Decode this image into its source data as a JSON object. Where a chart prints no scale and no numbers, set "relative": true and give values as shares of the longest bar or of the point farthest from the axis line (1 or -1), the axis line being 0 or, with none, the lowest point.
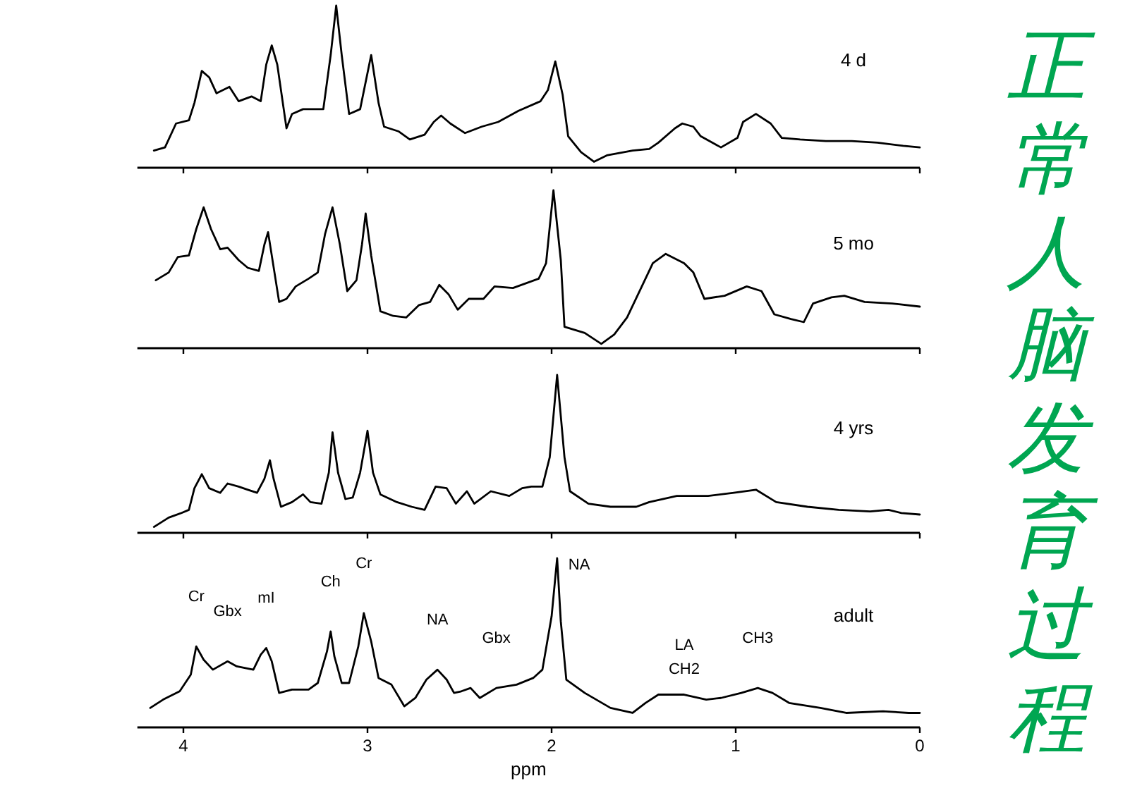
{
  "chart_data": [
    {
      "type": "line",
      "relative": true,
      "xlim": [
        4.25,
        0
      ],
      "xticks": [
        4,
        3,
        2,
        1,
        0
      ],
      "tick_labels": false,
      "series": [
        {
          "name": "4 d",
          "color": "#000000",
          "x": [
            4.16,
            4.1,
            4.04,
            3.97,
            3.94,
            3.9,
            3.86,
            3.82,
            3.75,
            3.7,
            3.63,
            3.58,
            3.55,
            3.52,
            3.49,
            3.44,
            3.41,
            3.35,
            3.24,
            3.2,
            3.17,
            3.14,
            3.1,
            3.04,
            2.98,
            2.94,
            2.91,
            2.83,
            2.77,
            2.69,
            2.64,
            2.6,
            2.55,
            2.47,
            2.38,
            2.29,
            2.18,
            2.06,
            2.02,
            1.98,
            1.94,
            1.91,
            1.84,
            1.77,
            1.7,
            1.56,
            1.47,
            1.42,
            1.33,
            1.29,
            1.23,
            1.19,
            1.08,
            0.99,
            0.96,
            0.89,
            0.81,
            0.75,
            0.65,
            0.51,
            0.37,
            0.23,
            0.09,
            0.0
          ],
          "values": [
            0.09,
            0.11,
            0.26,
            0.28,
            0.39,
            0.59,
            0.55,
            0.45,
            0.49,
            0.4,
            0.43,
            0.4,
            0.63,
            0.75,
            0.63,
            0.23,
            0.32,
            0.35,
            0.35,
            0.69,
            1,
            0.69,
            0.32,
            0.35,
            0.69,
            0.39,
            0.24,
            0.21,
            0.16,
            0.19,
            0.27,
            0.31,
            0.26,
            0.2,
            0.24,
            0.27,
            0.34,
            0.4,
            0.47,
            0.65,
            0.44,
            0.18,
            0.08,
            0.02,
            0.06,
            0.09,
            0.1,
            0.14,
            0.23,
            0.26,
            0.24,
            0.18,
            0.11,
            0.17,
            0.27,
            0.32,
            0.26,
            0.17,
            0.16,
            0.15,
            0.15,
            0.14,
            0.12,
            0.11
          ]
        }
      ]
    },
    {
      "type": "line",
      "relative": true,
      "xlim": [
        4.25,
        0
      ],
      "xticks": [
        4,
        3,
        2,
        1,
        0
      ],
      "tick_labels": false,
      "series": [
        {
          "name": "5 mo",
          "color": "#000000",
          "x": [
            4.15,
            4.08,
            4.03,
            3.97,
            3.93,
            3.89,
            3.85,
            3.8,
            3.76,
            3.7,
            3.65,
            3.59,
            3.56,
            3.54,
            3.52,
            3.48,
            3.44,
            3.39,
            3.32,
            3.27,
            3.23,
            3.19,
            3.15,
            3.11,
            3.06,
            3.03,
            3.01,
            2.98,
            2.93,
            2.86,
            2.79,
            2.72,
            2.66,
            2.61,
            2.56,
            2.51,
            2.45,
            2.37,
            2.31,
            2.21,
            2.07,
            2.03,
            1.99,
            1.95,
            1.93,
            1.82,
            1.73,
            1.66,
            1.59,
            1.51,
            1.45,
            1.38,
            1.28,
            1.23,
            1.17,
            1.06,
            0.94,
            0.86,
            0.79,
            0.7,
            0.63,
            0.58,
            0.48,
            0.41,
            0.3,
            0.15,
            0.0
          ],
          "values": [
            0.42,
            0.47,
            0.57,
            0.58,
            0.75,
            0.89,
            0.75,
            0.62,
            0.63,
            0.55,
            0.5,
            0.48,
            0.65,
            0.73,
            0.58,
            0.28,
            0.3,
            0.38,
            0.43,
            0.47,
            0.72,
            0.89,
            0.65,
            0.35,
            0.42,
            0.65,
            0.85,
            0.58,
            0.22,
            0.19,
            0.18,
            0.26,
            0.28,
            0.39,
            0.33,
            0.23,
            0.3,
            0.3,
            0.38,
            0.37,
            0.43,
            0.53,
            1,
            0.55,
            0.12,
            0.08,
            0.01,
            0.07,
            0.18,
            0.38,
            0.53,
            0.59,
            0.53,
            0.47,
            0.3,
            0.32,
            0.38,
            0.35,
            0.2,
            0.17,
            0.15,
            0.27,
            0.31,
            0.32,
            0.28,
            0.27,
            0.25
          ]
        }
      ]
    },
    {
      "type": "line",
      "relative": true,
      "xlim": [
        4.25,
        0
      ],
      "xticks": [
        4,
        3,
        2,
        1,
        0
      ],
      "tick_labels": false,
      "series": [
        {
          "name": "4 yrs",
          "color": "#000000",
          "x": [
            4.16,
            4.08,
            4.01,
            3.97,
            3.94,
            3.9,
            3.86,
            3.8,
            3.76,
            3.7,
            3.65,
            3.6,
            3.56,
            3.53,
            3.51,
            3.47,
            3.41,
            3.35,
            3.31,
            3.25,
            3.21,
            3.19,
            3.16,
            3.12,
            3.08,
            3.04,
            3.0,
            2.97,
            2.93,
            2.84,
            2.76,
            2.69,
            2.63,
            2.57,
            2.52,
            2.46,
            2.42,
            2.33,
            2.23,
            2.16,
            2.11,
            2.05,
            2.01,
            1.97,
            1.93,
            1.9,
            1.8,
            1.68,
            1.54,
            1.47,
            1.32,
            1.15,
            1.01,
            0.89,
            0.78,
            0.61,
            0.44,
            0.27,
            0.17,
            0.1,
            0.0
          ],
          "values": [
            0.02,
            0.08,
            0.11,
            0.13,
            0.27,
            0.36,
            0.27,
            0.24,
            0.3,
            0.28,
            0.26,
            0.24,
            0.33,
            0.45,
            0.33,
            0.15,
            0.18,
            0.23,
            0.18,
            0.17,
            0.37,
            0.63,
            0.37,
            0.2,
            0.21,
            0.37,
            0.64,
            0.37,
            0.23,
            0.18,
            0.15,
            0.13,
            0.28,
            0.27,
            0.17,
            0.25,
            0.17,
            0.25,
            0.22,
            0.27,
            0.28,
            0.28,
            0.47,
            1,
            0.47,
            0.25,
            0.17,
            0.15,
            0.15,
            0.18,
            0.22,
            0.22,
            0.24,
            0.26,
            0.18,
            0.15,
            0.13,
            0.12,
            0.13,
            0.11,
            0.1
          ]
        }
      ]
    },
    {
      "type": "line",
      "relative": true,
      "xlim": [
        4.25,
        0
      ],
      "xticks": [
        4,
        3,
        2,
        1,
        0
      ],
      "tick_labels": "x",
      "xlabel": "ppm",
      "annotations": [
        {
          "text": "Cr",
          "x": 3.93,
          "y": 0.47
        },
        {
          "text": "Gbx",
          "x": 3.76,
          "y": 0.38
        },
        {
          "text": "mI",
          "x": 3.55,
          "y": 0.46
        },
        {
          "text": "Ch",
          "x": 3.2,
          "y": 0.56
        },
        {
          "text": "Cr",
          "x": 3.02,
          "y": 0.67
        },
        {
          "text": "NA",
          "x": 2.62,
          "y": 0.33
        },
        {
          "text": "Gbx",
          "x": 2.3,
          "y": 0.22
        },
        {
          "text": "NA",
          "x": 1.97,
          "y": 1
        },
        {
          "text": "LA",
          "x": 1.28,
          "y": 0.18
        },
        {
          "text": "CH2",
          "x": 1.28,
          "y": 0.18
        },
        {
          "text": "CH3",
          "x": 0.88,
          "y": 0.22
        }
      ],
      "series": [
        {
          "name": "adult",
          "color": "#000000",
          "x": [
            4.18,
            4.11,
            4.02,
            3.96,
            3.93,
            3.89,
            3.84,
            3.76,
            3.71,
            3.62,
            3.58,
            3.55,
            3.52,
            3.48,
            3.41,
            3.32,
            3.27,
            3.22,
            3.2,
            3.18,
            3.14,
            3.1,
            3.05,
            3.02,
            2.98,
            2.94,
            2.87,
            2.8,
            2.74,
            2.68,
            2.62,
            2.57,
            2.53,
            2.49,
            2.44,
            2.39,
            2.3,
            2.19,
            2.1,
            2.05,
            2.0,
            1.97,
            1.95,
            1.92,
            1.82,
            1.68,
            1.56,
            1.49,
            1.42,
            1.28,
            1.16,
            1.08,
            0.97,
            0.88,
            0.8,
            0.71,
            0.54,
            0.4,
            0.2,
            0.06,
            0.0
          ],
          "values": [
            0.1,
            0.15,
            0.2,
            0.3,
            0.47,
            0.39,
            0.33,
            0.38,
            0.35,
            0.33,
            0.42,
            0.46,
            0.38,
            0.19,
            0.21,
            0.21,
            0.25,
            0.44,
            0.56,
            0.41,
            0.25,
            0.25,
            0.47,
            0.67,
            0.5,
            0.28,
            0.24,
            0.11,
            0.16,
            0.27,
            0.33,
            0.27,
            0.19,
            0.2,
            0.22,
            0.16,
            0.22,
            0.24,
            0.28,
            0.33,
            0.65,
            1,
            0.62,
            0.27,
            0.19,
            0.1,
            0.07,
            0.13,
            0.18,
            0.18,
            0.15,
            0.16,
            0.19,
            0.22,
            0.19,
            0.13,
            0.1,
            0.07,
            0.08,
            0.07,
            0.07
          ]
        }
      ]
    },
    {
      "type": "other",
      "title": "正常人脑发育过程"
    }
  ]
}
